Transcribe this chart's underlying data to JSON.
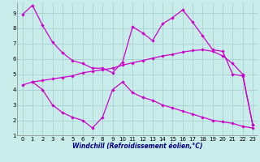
{
  "line1_x": [
    0,
    1,
    2,
    3,
    4,
    5,
    6,
    7,
    8,
    9,
    10,
    11,
    12,
    13,
    14,
    15,
    16,
    17,
    18,
    19,
    20,
    21,
    22,
    23
  ],
  "line1_y": [
    8.9,
    9.5,
    8.2,
    7.1,
    6.4,
    5.9,
    5.7,
    5.4,
    5.4,
    5.1,
    5.8,
    8.1,
    7.7,
    7.2,
    8.3,
    8.7,
    9.2,
    8.4,
    7.5,
    6.6,
    6.5,
    5.0,
    4.9,
    1.7
  ],
  "line2_x": [
    0,
    1,
    2,
    3,
    4,
    5,
    6,
    7,
    8,
    9,
    10,
    11,
    12,
    13,
    14,
    15,
    16,
    17,
    18,
    19,
    20,
    21,
    22,
    23
  ],
  "line2_y": [
    4.3,
    4.5,
    4.6,
    4.7,
    4.8,
    4.9,
    5.1,
    5.2,
    5.3,
    5.4,
    5.6,
    5.75,
    5.9,
    6.05,
    6.2,
    6.3,
    6.45,
    6.55,
    6.6,
    6.5,
    6.2,
    5.7,
    5.0,
    1.7
  ],
  "line3_x": [
    1,
    2,
    3,
    4,
    5,
    6,
    7,
    8,
    9,
    10,
    11,
    12,
    13,
    14,
    15,
    16,
    17,
    18,
    19,
    20,
    21,
    22,
    23
  ],
  "line3_y": [
    4.5,
    4.0,
    3.0,
    2.5,
    2.2,
    2.0,
    1.5,
    2.2,
    4.0,
    4.5,
    3.8,
    3.5,
    3.3,
    3.0,
    2.8,
    2.6,
    2.4,
    2.2,
    2.0,
    1.9,
    1.8,
    1.6,
    1.5
  ],
  "line_color": "#cc00cc",
  "bg_color": "#c8ecea",
  "grid_color": "#a0cbca",
  "xlabel": "Windchill (Refroidissement éolien,°C)",
  "ylim": [
    1,
    9.7
  ],
  "xlim": [
    -0.5,
    23.5
  ],
  "yticks": [
    1,
    2,
    3,
    4,
    5,
    6,
    7,
    8,
    9
  ],
  "xticks": [
    0,
    1,
    2,
    3,
    4,
    5,
    6,
    7,
    8,
    9,
    10,
    11,
    12,
    13,
    14,
    15,
    16,
    17,
    18,
    19,
    20,
    21,
    22,
    23
  ],
  "xlabel_color": "#000080",
  "xlabel_fontsize": 5.5,
  "tick_fontsize": 5.0,
  "marker_size": 2.2,
  "line_width": 0.9
}
